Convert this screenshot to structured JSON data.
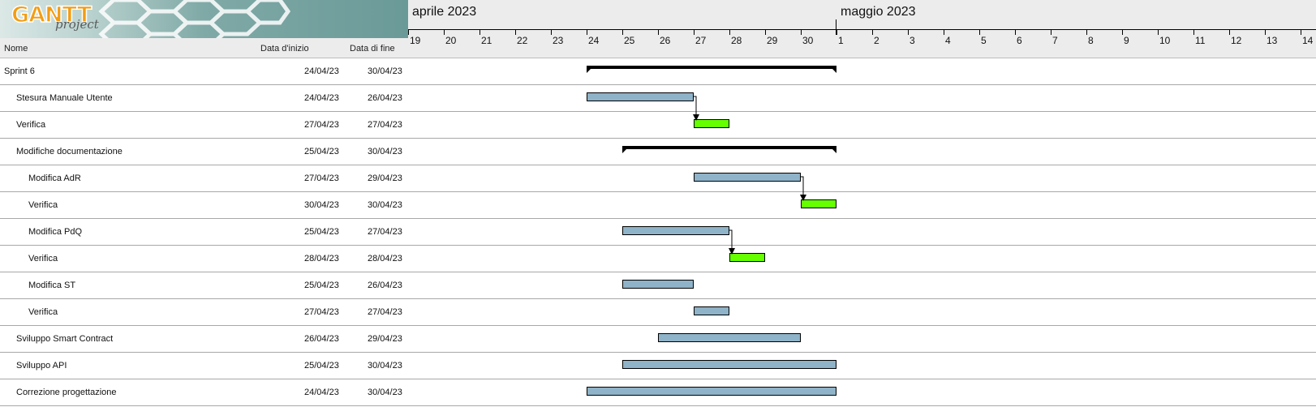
{
  "logo": {
    "brand": "GANTT",
    "sub": "project"
  },
  "columns": {
    "name": "Nome",
    "start": "Data d'inizio",
    "end": "Data di fine"
  },
  "timeline": {
    "months": [
      "aprile 2023",
      "maggio 2023"
    ],
    "days": [
      "19",
      "20",
      "21",
      "22",
      "23",
      "24",
      "25",
      "26",
      "27",
      "28",
      "29",
      "30",
      "1",
      "2",
      "3",
      "4",
      "5",
      "6",
      "7",
      "8",
      "9",
      "10",
      "11",
      "12",
      "13",
      "14"
    ]
  },
  "colors": {
    "task": "#8fb3c8",
    "milestone": "#66ff00",
    "summary": "#000000",
    "grid": "#a8a8a8"
  },
  "chart_data": {
    "type": "gantt",
    "first_day": "2023-04-19",
    "tasks": [
      {
        "name": "Sprint 6",
        "start": "24/04/23",
        "end": "30/04/23",
        "s": "2023-04-24",
        "e": "2023-04-30",
        "level": 0,
        "kind": "summary"
      },
      {
        "name": "Stesura Manuale Utente",
        "start": "24/04/23",
        "end": "26/04/23",
        "s": "2023-04-24",
        "e": "2023-04-26",
        "level": 1,
        "kind": "task"
      },
      {
        "name": "Verifica",
        "start": "27/04/23",
        "end": "27/04/23",
        "s": "2023-04-27",
        "e": "2023-04-27",
        "level": 1,
        "kind": "verify"
      },
      {
        "name": "Modifiche documentazione",
        "start": "25/04/23",
        "end": "30/04/23",
        "s": "2023-04-25",
        "e": "2023-04-30",
        "level": 1,
        "kind": "summary"
      },
      {
        "name": "Modifica AdR",
        "start": "27/04/23",
        "end": "29/04/23",
        "s": "2023-04-27",
        "e": "2023-04-29",
        "level": 2,
        "kind": "task"
      },
      {
        "name": "Verifica",
        "start": "30/04/23",
        "end": "30/04/23",
        "s": "2023-04-30",
        "e": "2023-04-30",
        "level": 2,
        "kind": "verify"
      },
      {
        "name": "Modifica PdQ",
        "start": "25/04/23",
        "end": "27/04/23",
        "s": "2023-04-25",
        "e": "2023-04-27",
        "level": 2,
        "kind": "task"
      },
      {
        "name": "Verifica",
        "start": "28/04/23",
        "end": "28/04/23",
        "s": "2023-04-28",
        "e": "2023-04-28",
        "level": 2,
        "kind": "verify"
      },
      {
        "name": "Modifica ST",
        "start": "25/04/23",
        "end": "26/04/23",
        "s": "2023-04-25",
        "e": "2023-04-26",
        "level": 2,
        "kind": "task"
      },
      {
        "name": "Verifica",
        "start": "27/04/23",
        "end": "27/04/23",
        "s": "2023-04-27",
        "e": "2023-04-27",
        "level": 2,
        "kind": "task"
      },
      {
        "name": "Sviluppo Smart Contract",
        "start": "26/04/23",
        "end": "29/04/23",
        "s": "2023-04-26",
        "e": "2023-04-29",
        "level": 1,
        "kind": "task"
      },
      {
        "name": "Sviluppo API",
        "start": "25/04/23",
        "end": "30/04/23",
        "s": "2023-04-25",
        "e": "2023-04-30",
        "level": 1,
        "kind": "task"
      },
      {
        "name": "Correzione progettazione",
        "start": "24/04/23",
        "end": "30/04/23",
        "s": "2023-04-24",
        "e": "2023-04-30",
        "level": 1,
        "kind": "task"
      }
    ],
    "dependencies": [
      [
        1,
        2
      ],
      [
        4,
        5
      ],
      [
        6,
        7
      ]
    ]
  }
}
